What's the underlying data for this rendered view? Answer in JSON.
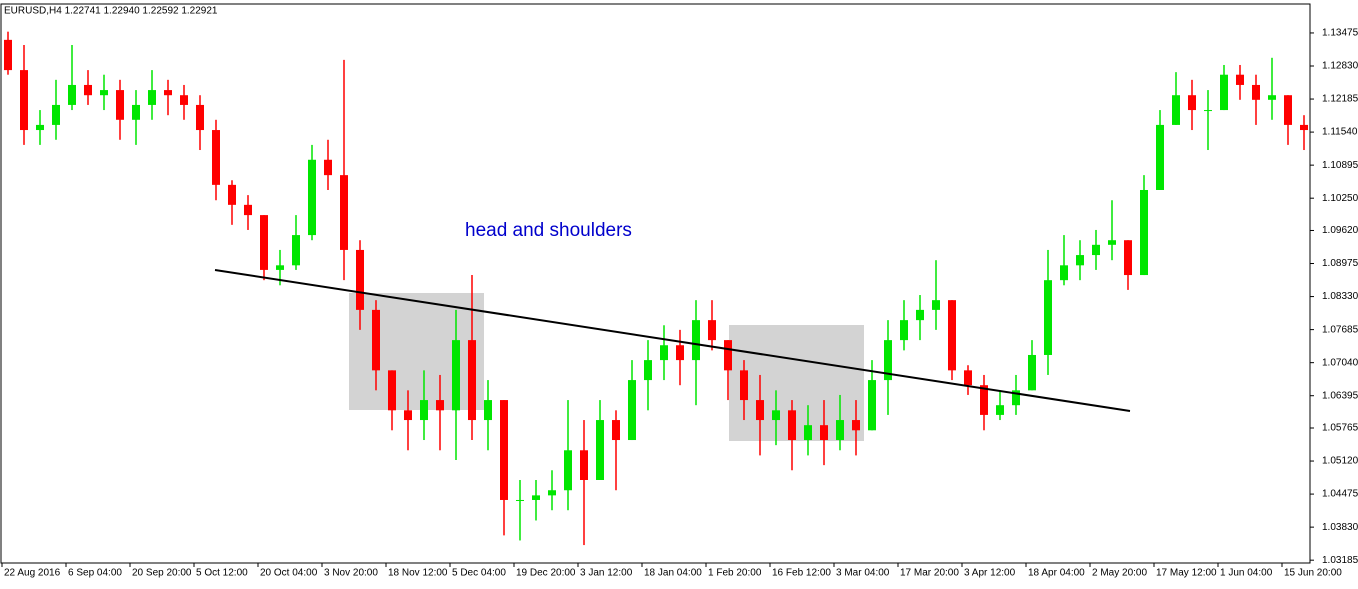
{
  "chart_data": {
    "type": "candlestick",
    "title": "EURUSD,H4  1.22741 1.22940 1.22592 1.22921",
    "annotation": "head and shoulders",
    "up_color": "#00e600",
    "down_color": "#ff0000",
    "categories": [
      "22 Aug 2016",
      null,
      null,
      null,
      "6 Sep 04:00",
      null,
      null,
      null,
      "20 Sep 20:00",
      null,
      null,
      null,
      "5 Oct 12:00",
      null,
      null,
      null,
      "20 Oct 04:00",
      null,
      null,
      null,
      "3 Nov 20:00",
      null,
      null,
      null,
      "18 Nov 12:00",
      null,
      null,
      null,
      "5 Dec 04:00",
      null,
      null,
      null,
      "19 Dec 20:00",
      null,
      null,
      null,
      "3 Jan 12:00",
      null,
      null,
      null,
      "18 Jan 04:00",
      null,
      null,
      null,
      "1 Feb 20:00",
      null,
      null,
      null,
      "16 Feb 12:00",
      null,
      null,
      null,
      "3 Mar 04:00",
      null,
      null,
      null,
      "17 Mar 20:00",
      null,
      null,
      null,
      "3 Apr 12:00",
      null,
      null,
      null,
      "18 Apr 04:00",
      null,
      null,
      null,
      "2 May 20:00",
      null,
      null,
      null,
      "17 May 12:00",
      null,
      null,
      null,
      "1 Jun 04:00",
      null,
      null,
      null,
      "15 Jun 20:00",
      null
    ],
    "open": [
      1.1334,
      1.1275,
      1.1158,
      1.1168,
      1.1207,
      1.1246,
      1.1226,
      1.1236,
      1.1178,
      1.1207,
      1.1236,
      1.1226,
      1.1207,
      1.1158,
      1.1051,
      1.1012,
      1.0992,
      1.0885,
      1.0894,
      1.0953,
      1.11,
      1.107,
      1.0924,
      1.0807,
      1.0689,
      1.0611,
      1.0592,
      1.0631,
      1.0611,
      1.0748,
      1.0592,
      1.0631,
      1.0436,
      1.0436,
      1.0445,
      1.0455,
      1.0533,
      1.0475,
      1.0592,
      1.0553,
      1.067,
      1.0709,
      1.0738,
      1.0709,
      1.0787,
      1.0748,
      1.0689,
      1.0631,
      1.0592,
      1.0611,
      1.0553,
      1.0582,
      1.0553,
      1.0592,
      1.0572,
      1.067,
      1.0748,
      1.0787,
      1.0807,
      1.0826,
      1.0689,
      1.066,
      1.0602,
      1.0621,
      1.065,
      1.0719,
      1.0865,
      1.0894,
      1.0914,
      1.0934,
      1.0943,
      1.0875,
      1.1041,
      1.1168,
      1.1226,
      1.1197,
      1.1197,
      1.1266,
      1.1246,
      1.1217,
      1.1226,
      1.1168
    ],
    "high": [
      1.135,
      1.1324,
      1.1197,
      1.1256,
      1.1324,
      1.1275,
      1.1266,
      1.1256,
      1.1236,
      1.1275,
      1.1256,
      1.1246,
      1.1226,
      1.1178,
      1.106,
      1.1031,
      1.0992,
      1.0924,
      1.0992,
      1.1129,
      1.1139,
      1.1295,
      1.0943,
      1.0826,
      1.0689,
      1.065,
      1.0689,
      1.068,
      1.0807,
      1.0875,
      1.067,
      1.0631,
      1.0475,
      1.0475,
      1.0494,
      1.0631,
      1.0592,
      1.0631,
      1.0611,
      1.0709,
      1.0748,
      1.0777,
      1.0768,
      1.0826,
      1.0826,
      1.0748,
      1.0709,
      1.068,
      1.065,
      1.0631,
      1.0621,
      1.0631,
      1.0641,
      1.0631,
      1.0709,
      1.0787,
      1.0826,
      1.0836,
      1.0904,
      1.0826,
      1.0699,
      1.068,
      1.065,
      1.068,
      1.0748,
      1.0924,
      1.0953,
      1.0943,
      1.0963,
      1.1021,
      1.0943,
      1.107,
      1.1197,
      1.1271,
      1.1256,
      1.1236,
      1.1285,
      1.1285,
      1.1266,
      1.1299,
      1.1226,
      1.1187
    ],
    "low": [
      1.1266,
      1.1129,
      1.1129,
      1.1139,
      1.1197,
      1.1207,
      1.1197,
      1.1139,
      1.1129,
      1.1178,
      1.1187,
      1.1178,
      1.1119,
      1.1021,
      1.0973,
      1.0963,
      1.0865,
      1.0855,
      1.0885,
      1.0943,
      1.1041,
      1.0865,
      1.0768,
      1.065,
      1.0572,
      1.0533,
      1.0553,
      1.0533,
      1.0514,
      1.0553,
      1.0533,
      1.0367,
      1.0357,
      1.0396,
      1.0416,
      1.0416,
      1.0348,
      1.0475,
      1.0455,
      1.0553,
      1.0611,
      1.067,
      1.066,
      1.0621,
      1.0728,
      1.0631,
      1.0592,
      1.0523,
      1.0543,
      1.0494,
      1.0523,
      1.0504,
      1.0533,
      1.0523,
      1.0572,
      1.0602,
      1.0728,
      1.0748,
      1.0768,
      1.067,
      1.0641,
      1.0572,
      1.0592,
      1.0602,
      1.065,
      1.068,
      1.0855,
      1.0865,
      1.0885,
      1.0904,
      1.0846,
      1.0875,
      1.1041,
      1.1168,
      1.1158,
      1.1119,
      1.1197,
      1.1217,
      1.1168,
      1.1178,
      1.1129,
      1.1119
    ],
    "close": [
      1.1275,
      1.1158,
      1.1168,
      1.1207,
      1.1246,
      1.1226,
      1.1236,
      1.1178,
      1.1207,
      1.1236,
      1.1226,
      1.1207,
      1.1158,
      1.1051,
      1.1012,
      1.0992,
      1.0885,
      1.0894,
      1.0953,
      1.11,
      1.107,
      1.0924,
      1.0807,
      1.0689,
      1.0611,
      1.0592,
      1.0631,
      1.0611,
      1.0748,
      1.0592,
      1.0631,
      1.0436,
      1.0436,
      1.0445,
      1.0455,
      1.0533,
      1.0475,
      1.0592,
      1.0553,
      1.067,
      1.0709,
      1.0738,
      1.0709,
      1.0787,
      1.0748,
      1.0689,
      1.0631,
      1.0592,
      1.0611,
      1.0553,
      1.0582,
      1.0553,
      1.0592,
      1.0572,
      1.067,
      1.0748,
      1.0787,
      1.0807,
      1.0826,
      1.0689,
      1.066,
      1.0602,
      1.0621,
      1.065,
      1.0719,
      1.0865,
      1.0894,
      1.0914,
      1.0934,
      1.0943,
      1.0875,
      1.1041,
      1.1168,
      1.1226,
      1.1197,
      1.1197,
      1.1266,
      1.1246,
      1.1217,
      1.1226,
      1.1168,
      1.1158
    ],
    "ylim": [
      1.0313,
      1.1404
    ],
    "yticks": [
      1.13475,
      {
        "value": 1.1283,
        "label": "1.12830"
      },
      1.12185,
      {
        "value": 1.1154,
        "label": "1.11540"
      },
      1.10895,
      {
        "value": 1.1025,
        "label": "1.10250"
      },
      {
        "value": 1.0962,
        "label": "1.09620"
      },
      1.08975,
      {
        "value": 1.0833,
        "label": "1.08330"
      },
      1.07685,
      {
        "value": 1.0704,
        "label": "1.07040"
      },
      1.06395,
      1.05765,
      {
        "value": 1.0512,
        "label": "1.05120"
      },
      1.04475,
      {
        "value": 1.0383,
        "label": "1.03830"
      },
      1.03185
    ]
  }
}
